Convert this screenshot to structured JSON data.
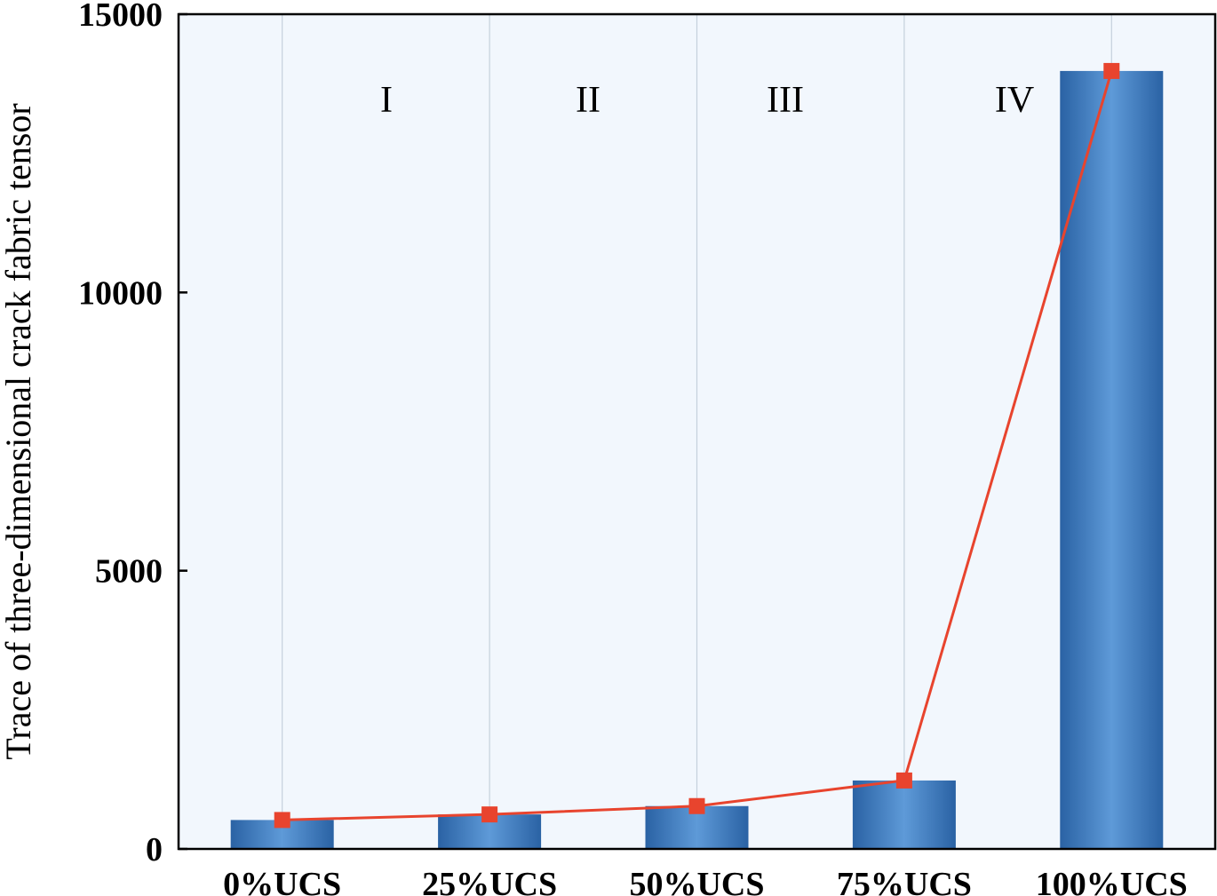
{
  "chart_data": {
    "type": "bar",
    "categories": [
      "0%UCS",
      "25%UCS",
      "50%UCS",
      "75%UCS",
      "100%UCS"
    ],
    "values": [
      520,
      620,
      770,
      1230,
      13980
    ],
    "line_series": {
      "marker": "square",
      "values": [
        520,
        620,
        770,
        1230,
        13980
      ]
    },
    "ylabel": "Trace of three-dimensional crack fabric tensor",
    "xlabel": "",
    "ylim": [
      0,
      15000
    ],
    "yticks": [
      0,
      5000,
      10000,
      15000
    ],
    "ytick_labels": [
      "0",
      "5000",
      "10000",
      "15000"
    ],
    "phase_labels": [
      "I",
      "II",
      "III",
      "IV"
    ],
    "grid": "vertical",
    "colors": {
      "bar_dark": "#2a62a4",
      "bar_light": "#5e9ad8",
      "line": "#e8442e",
      "marker": "#e8442e",
      "plot_bg": "#f2f7fd",
      "grid": "#c5d0dc"
    }
  }
}
